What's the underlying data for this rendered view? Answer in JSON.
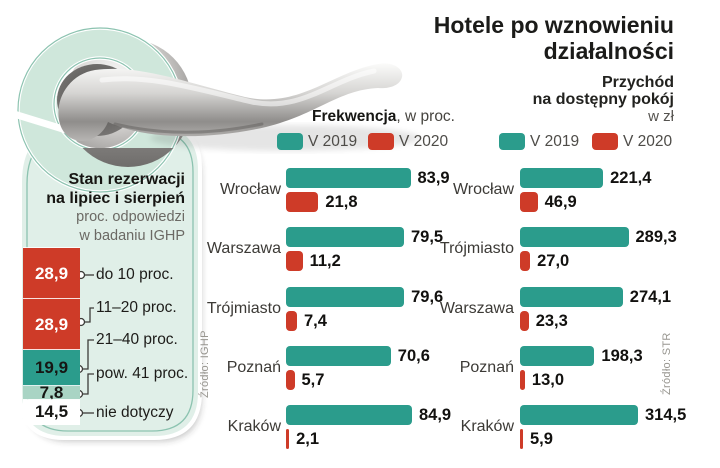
{
  "title": {
    "line1": "Hotele po wznowieniu",
    "line2": "działalności"
  },
  "subtitle_right": {
    "line1": "Przychód",
    "line2": "na dostępny pokój",
    "line3": "w zł"
  },
  "left_header": {
    "bold": "Frekwencja",
    "rest": ", w proc."
  },
  "legend": {
    "v2019": "V 2019",
    "v2020": "V 2020"
  },
  "colors": {
    "teal": "#2b9c8c",
    "red": "#ce3b28",
    "light_teal": "#a9d4c4",
    "white": "#ffffff",
    "mint": "#e0efe8"
  },
  "hanger": {
    "heading1": "Stan rezerwacji",
    "heading2": "na lipiec i sierpień",
    "sub1": "proc. odpowiedzi",
    "sub2": "w badaniu IGHP",
    "source": "Źródło: IGHP",
    "segments": [
      {
        "value": 28.9,
        "label": "do 10 proc.",
        "color": "red",
        "text_color": "#ffffff"
      },
      {
        "value": 28.9,
        "label": "11–20 proc.",
        "color": "red",
        "text_color": "#ffffff"
      },
      {
        "value": 19.9,
        "label": "21–40 proc.",
        "color": "teal",
        "text_color": "#161613"
      },
      {
        "value": 7.8,
        "label": "pow. 41 proc.",
        "color": "light_teal",
        "text_color": "#161613"
      },
      {
        "value": 14.5,
        "label": "nie dotyczy",
        "color": "white",
        "text_color": "#161613"
      }
    ]
  },
  "charts_source": "Źródło: STR",
  "chart_data": [
    {
      "type": "bar",
      "orientation": "horizontal",
      "title": "Frekwencja, w proc.",
      "categories": [
        "Wrocław",
        "Warszawa",
        "Trójmiasto",
        "Poznań",
        "Kraków"
      ],
      "series": [
        {
          "name": "V 2019",
          "values": [
            83.9,
            79.5,
            79.6,
            70.6,
            84.9
          ]
        },
        {
          "name": "V 2020",
          "values": [
            21.8,
            11.2,
            7.4,
            5.7,
            2.1
          ]
        }
      ],
      "unit": "proc."
    },
    {
      "type": "bar",
      "orientation": "horizontal",
      "title": "Przychód na dostępny pokój, w zł",
      "categories": [
        "Wrocław",
        "Trójmiasto",
        "Warszawa",
        "Poznań",
        "Kraków"
      ],
      "series": [
        {
          "name": "V 2019",
          "values": [
            221.4,
            289.3,
            274.1,
            198.3,
            314.5
          ]
        },
        {
          "name": "V 2020",
          "values": [
            46.9,
            27.0,
            23.3,
            13.0,
            5.9
          ]
        }
      ],
      "unit": "zł"
    }
  ]
}
